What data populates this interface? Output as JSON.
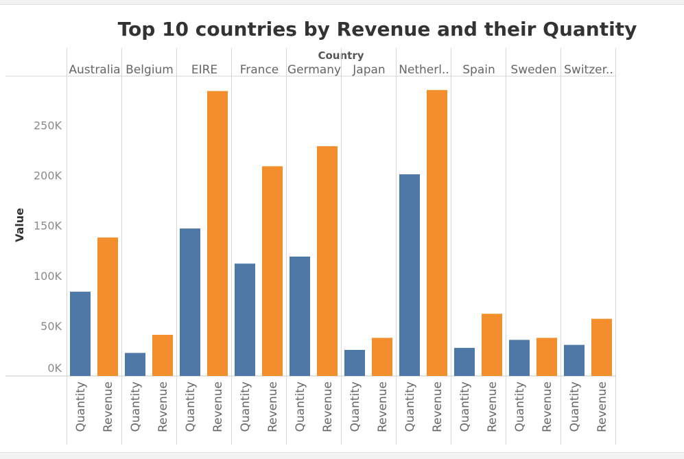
{
  "chart_data": {
    "type": "bar",
    "title": "Top 10 countries by Revenue and their Quantity",
    "column_header": "Country",
    "ylabel": "Value",
    "xlabel": "",
    "categories": [
      "Australia",
      "Belgium",
      "EIRE",
      "France",
      "Germany",
      "Japan",
      "Netherl..",
      "Spain",
      "Sweden",
      "Switzer.."
    ],
    "measures": [
      "Quantity",
      "Revenue"
    ],
    "series": [
      {
        "name": "Quantity",
        "color": "#4e79a7",
        "values": [
          84000,
          23000,
          147000,
          112000,
          119000,
          26000,
          201000,
          28000,
          36000,
          31000
        ]
      },
      {
        "name": "Revenue",
        "color": "#f28e2b",
        "values": [
          138000,
          41000,
          284000,
          209000,
          229000,
          38000,
          285000,
          62000,
          38000,
          57000
        ]
      }
    ],
    "yticks": [
      0,
      50000,
      100000,
      150000,
      200000,
      250000
    ],
    "ytick_labels": [
      "0K",
      "50K",
      "100K",
      "150K",
      "200K",
      "250K"
    ],
    "ylim": [
      0,
      290000
    ],
    "grid": false,
    "legend": "none"
  }
}
